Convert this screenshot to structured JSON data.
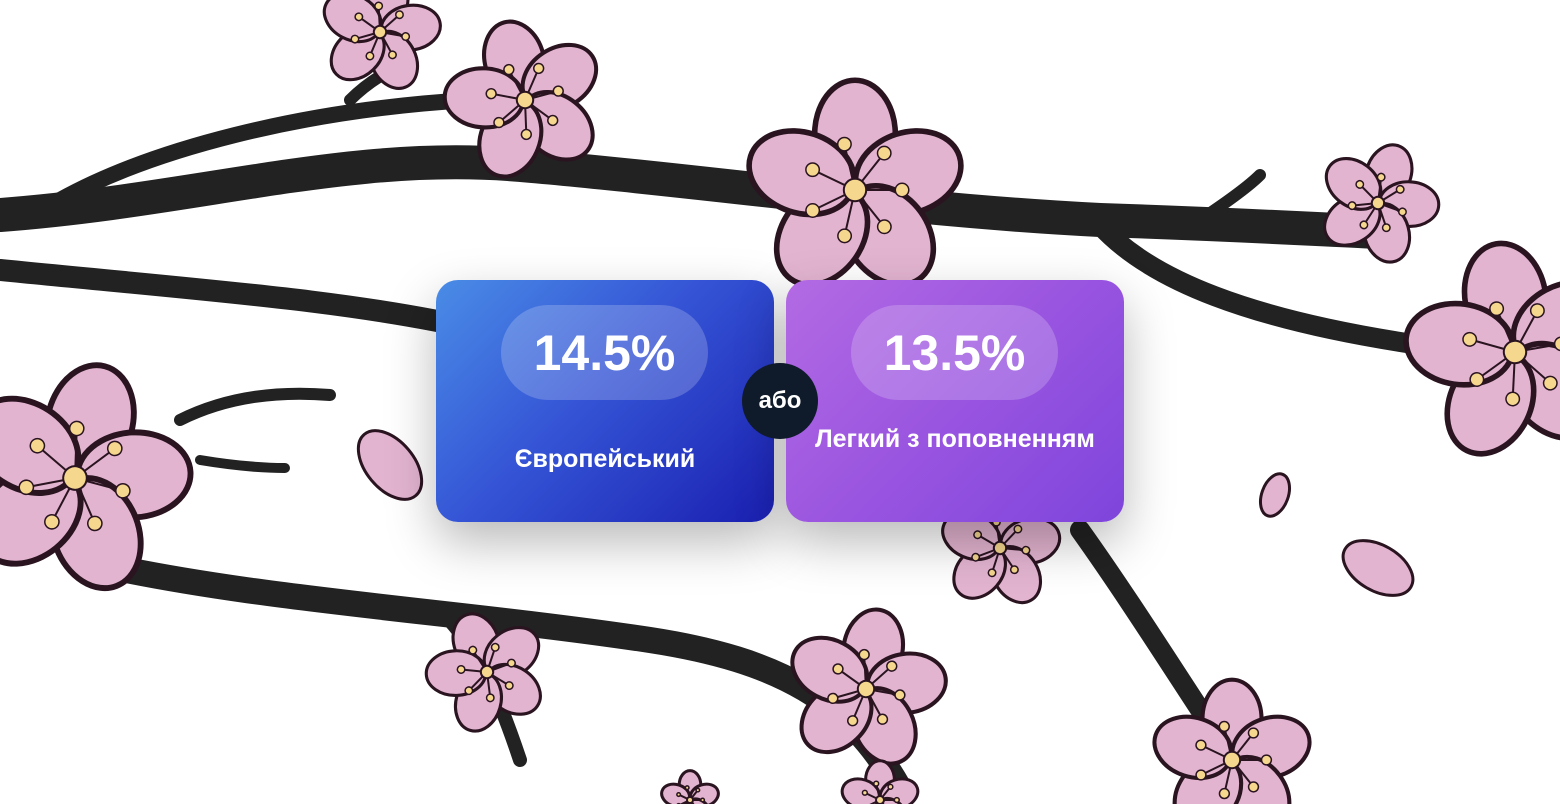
{
  "colors": {
    "blue_card": "#3555d6",
    "purple_card": "#9a55e0",
    "or_badge": "#0f1a2a",
    "blossom": "#e3b4d0",
    "branch": "#222222"
  },
  "cards": [
    {
      "rate": "14.5%",
      "name": "Європейський"
    },
    {
      "rate": "13.5%",
      "name": "Легкий з поповненням"
    }
  ],
  "separator": "або"
}
